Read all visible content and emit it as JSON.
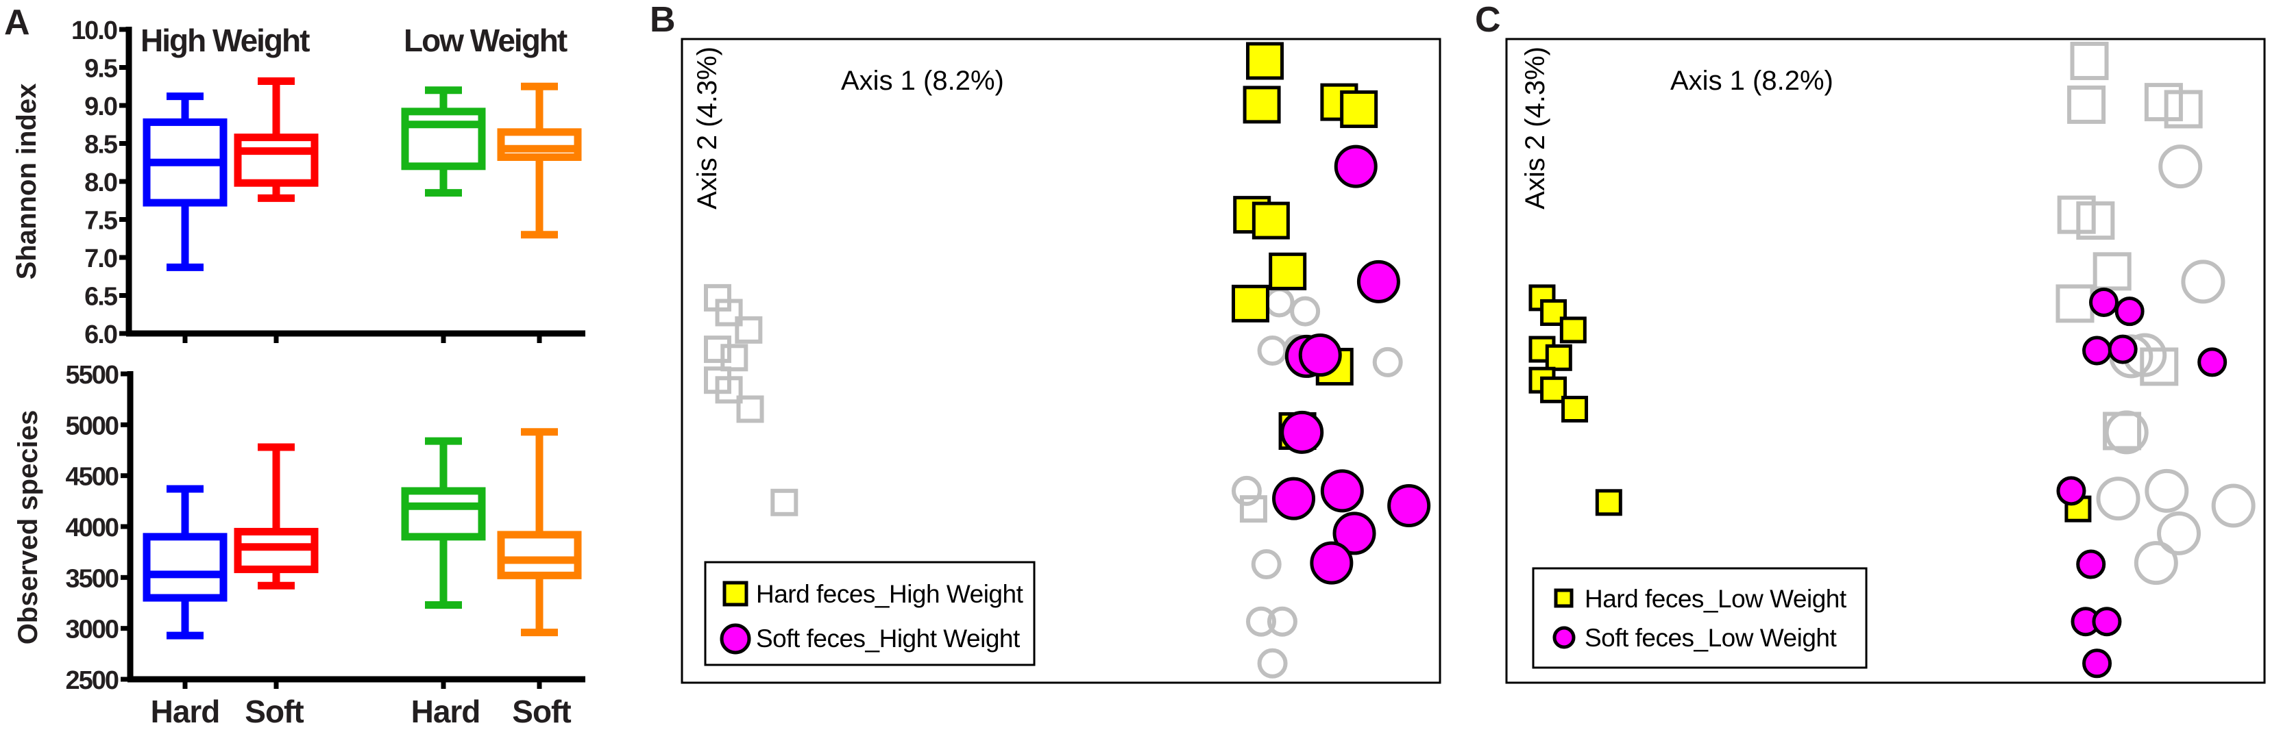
{
  "panels": {
    "a": "A",
    "b": "B",
    "c": "C"
  },
  "colors": {
    "blue": "#0000FF",
    "red": "#FF0000",
    "green": "#17B517",
    "orange": "#FF8000",
    "yellow": "#FFFF00",
    "magenta": "#FF00FF",
    "gray": "#BFBFBF",
    "black": "#000000"
  },
  "chart_data": [
    {
      "type": "box",
      "panel": "A-top",
      "ylabel": "Shannon index",
      "group_titles": [
        "High Weight",
        "Low Weight"
      ],
      "ylim": [
        6.0,
        10.0
      ],
      "yticks": [
        "6.0",
        "6.5",
        "7.0",
        "7.5",
        "8.0",
        "8.5",
        "9.0",
        "9.5",
        "10.0"
      ],
      "categories": [
        "Hard",
        "Soft",
        "Hard",
        "Soft"
      ],
      "series": [
        {
          "name": "High Weight Hard",
          "color": "#0000FF",
          "min": 6.87,
          "q1": 7.72,
          "median": 8.25,
          "q3": 8.78,
          "max": 9.12
        },
        {
          "name": "High Weight Soft",
          "color": "#FF0000",
          "min": 7.78,
          "q1": 7.98,
          "median": 8.4,
          "q3": 8.58,
          "max": 9.32
        },
        {
          "name": "Low Weight Hard",
          "color": "#17B517",
          "min": 7.85,
          "q1": 8.2,
          "median": 8.75,
          "q3": 8.92,
          "max": 9.2
        },
        {
          "name": "Low Weight Soft",
          "color": "#FF8000",
          "min": 7.3,
          "q1": 8.32,
          "median": 8.43,
          "q3": 8.65,
          "max": 9.25
        }
      ]
    },
    {
      "type": "box",
      "panel": "A-bottom",
      "ylabel": "Observed species",
      "ylim": [
        2500,
        5500
      ],
      "yticks": [
        "2500",
        "3000",
        "3500",
        "4000",
        "4500",
        "5000",
        "5500"
      ],
      "categories": [
        "Hard",
        "Soft",
        "Hard",
        "Soft"
      ],
      "series": [
        {
          "name": "High Weight Hard",
          "color": "#0000FF",
          "min": 2930,
          "q1": 3300,
          "median": 3530,
          "q3": 3900,
          "max": 4370
        },
        {
          "name": "High Weight Soft",
          "color": "#FF0000",
          "min": 3420,
          "q1": 3580,
          "median": 3800,
          "q3": 3950,
          "max": 4780
        },
        {
          "name": "Low Weight Hard",
          "color": "#17B517",
          "min": 3230,
          "q1": 3900,
          "median": 4200,
          "q3": 4350,
          "max": 4840
        },
        {
          "name": "Low Weight Soft",
          "color": "#FF8000",
          "min": 2960,
          "q1": 3520,
          "median": 3670,
          "q3": 3920,
          "max": 4930
        }
      ]
    },
    {
      "type": "scatter",
      "panel": "B",
      "xlabel": "Axis 1 (8.2%)",
      "ylabel": "Axis 2 (4.3%)",
      "xlim": [
        0,
        100
      ],
      "ylim": [
        0,
        100
      ],
      "legend_position": "bottom-left",
      "legend": [
        "Hard feces_High Weight",
        "Soft feces_Hight Weight"
      ],
      "highlight": [
        "HH",
        "SH"
      ]
    },
    {
      "type": "scatter",
      "panel": "C",
      "xlabel": "Axis 1 (8.2%)",
      "ylabel": "Axis 2 (4.3%)",
      "xlim": [
        0,
        100
      ],
      "ylim": [
        0,
        100
      ],
      "legend_position": "bottom-left",
      "legend": [
        "Hard feces_Low Weight",
        "Soft feces_Low Weight"
      ],
      "highlight": [
        "HL",
        "SL"
      ]
    }
  ],
  "pcoa_groups": {
    "HH": {
      "name": "Hard feces_High Weight",
      "marker": "square",
      "size": "large",
      "color": "#FFFF00",
      "points": [
        [
          76.9,
          96.6
        ],
        [
          76.5,
          89.8
        ],
        [
          86.7,
          90.2
        ],
        [
          89.3,
          89.1
        ],
        [
          75.2,
          72.7
        ],
        [
          77.7,
          71.8
        ],
        [
          79.9,
          63.9
        ],
        [
          75.0,
          58.9
        ],
        [
          86.1,
          49.1
        ],
        [
          81.2,
          39.1
        ]
      ]
    },
    "SH": {
      "name": "Soft feces_High Weight",
      "marker": "circle",
      "size": "large",
      "color": "#FF00FF",
      "points": [
        [
          88.9,
          80.2
        ],
        [
          91.9,
          62.3
        ],
        [
          82.4,
          50.7
        ],
        [
          84.2,
          50.9
        ],
        [
          81.8,
          38.9
        ],
        [
          80.7,
          28.6
        ],
        [
          87.1,
          29.8
        ],
        [
          95.9,
          27.5
        ],
        [
          88.7,
          23.2
        ],
        [
          85.7,
          18.6
        ]
      ]
    },
    "HL": {
      "name": "Hard feces_Low Weight",
      "marker": "square",
      "size": "small",
      "color": "#FFFF00",
      "points": [
        [
          4.7,
          59.8
        ],
        [
          6.2,
          57.5
        ],
        [
          8.8,
          54.8
        ],
        [
          4.7,
          51.8
        ],
        [
          6.9,
          50.5
        ],
        [
          4.7,
          47.0
        ],
        [
          6.2,
          45.5
        ],
        [
          9.0,
          42.5
        ],
        [
          13.5,
          28.0
        ],
        [
          75.4,
          27.0
        ]
      ]
    },
    "SL": {
      "name": "Soft feces_Low Weight",
      "marker": "circle",
      "size": "small",
      "color": "#FF00FF",
      "points": [
        [
          78.8,
          59.1
        ],
        [
          82.2,
          57.7
        ],
        [
          77.9,
          51.6
        ],
        [
          81.3,
          51.8
        ],
        [
          93.1,
          49.8
        ],
        [
          74.5,
          29.8
        ],
        [
          77.1,
          18.4
        ],
        [
          76.4,
          9.5
        ],
        [
          79.2,
          9.5
        ],
        [
          77.9,
          3.0
        ]
      ]
    }
  }
}
